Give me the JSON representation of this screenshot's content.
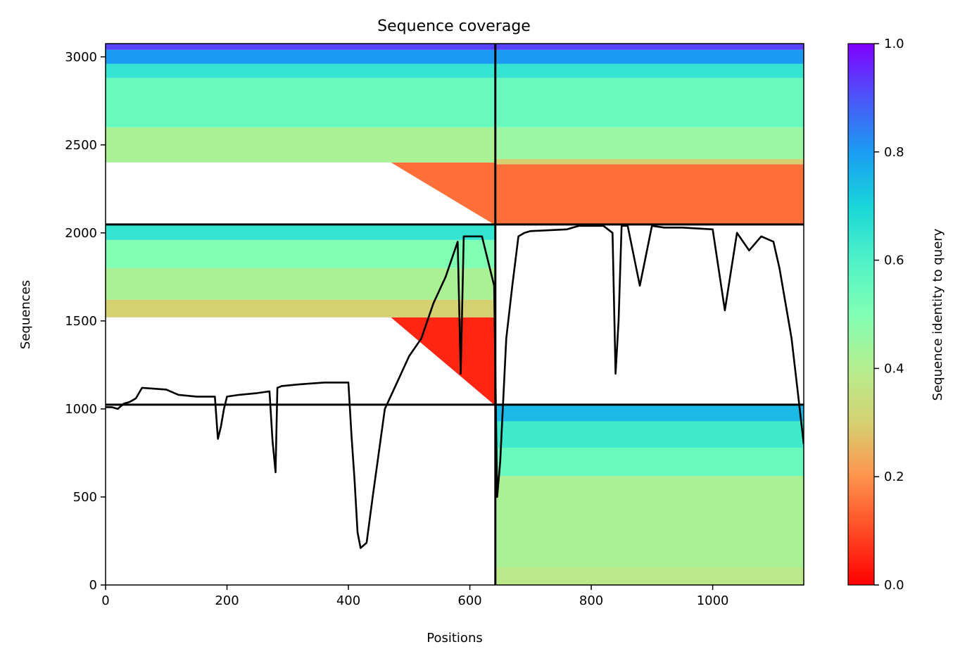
{
  "chart_data": {
    "type": "heatmap",
    "title": "Sequence coverage",
    "xlabel": "Positions",
    "ylabel": "Sequences",
    "xlim": [
      0,
      1150
    ],
    "ylim": [
      0,
      3075
    ],
    "xticks": [
      0,
      200,
      400,
      600,
      800,
      1000
    ],
    "yticks": [
      0,
      500,
      1000,
      1500,
      2000,
      2500,
      3000
    ],
    "colorbar": {
      "label": "Sequence identity to query",
      "range": [
        0.0,
        1.0
      ],
      "ticks": [
        "0.0",
        "0.2",
        "0.4",
        "0.6",
        "0.8",
        "1.0"
      ],
      "colormap": "rainbow"
    },
    "separators": {
      "x": [
        642
      ],
      "y": [
        1024,
        2048
      ]
    },
    "blocks": [
      {
        "x": [
          0,
          642
        ],
        "y": [
          0,
          1024
        ],
        "fill": "empty"
      },
      {
        "x": [
          642,
          1150
        ],
        "y": [
          0,
          1024
        ],
        "identity_bands": [
          {
            "y": [
              0,
              100
            ],
            "identity": 0.38
          },
          {
            "y": [
              100,
              620
            ],
            "identity": 0.42
          },
          {
            "y": [
              620,
              780
            ],
            "identity": 0.55
          },
          {
            "y": [
              780,
              930
            ],
            "identity": 0.63
          },
          {
            "y": [
              930,
              1024
            ],
            "identity": 0.75
          }
        ]
      },
      {
        "x": [
          0,
          642
        ],
        "y": [
          1024,
          2048
        ],
        "identity_bands": [
          {
            "y": [
              1024,
              1520
            ],
            "identity": 0.05,
            "x_start": [
              640,
              470
            ]
          },
          {
            "y": [
              1520,
              1620
            ],
            "identity": 0.3
          },
          {
            "y": [
              1620,
              1800
            ],
            "identity": 0.42
          },
          {
            "y": [
              1800,
              1960
            ],
            "identity": 0.5
          },
          {
            "y": [
              1960,
              2048
            ],
            "identity": 0.65
          }
        ]
      },
      {
        "x": [
          642,
          1150
        ],
        "y": [
          2048,
          3075
        ],
        "identity_bands": [
          {
            "y": [
              2048,
              2390
            ],
            "identity": 0.15
          },
          {
            "y": [
              2390,
              2420
            ],
            "identity": 0.3
          },
          {
            "y": [
              2420,
              2600
            ],
            "identity": 0.45
          },
          {
            "y": [
              2600,
              2880
            ],
            "identity": 0.55
          },
          {
            "y": [
              2880,
              2960
            ],
            "identity": 0.65
          },
          {
            "y": [
              2960,
              3040
            ],
            "identity": 0.8
          },
          {
            "y": [
              3040,
              3075
            ],
            "identity": 0.92
          }
        ]
      },
      {
        "x": [
          0,
          642
        ],
        "y": [
          2048,
          3075
        ],
        "identity_bands": [
          {
            "y": [
              2048,
              2400
            ],
            "identity": 0.15,
            "x_start": [
              640,
              470
            ]
          },
          {
            "y": [
              2400,
              2600
            ],
            "identity": 0.42
          },
          {
            "y": [
              2600,
              2880
            ],
            "identity": 0.55
          },
          {
            "y": [
              2880,
              2960
            ],
            "identity": 0.65
          },
          {
            "y": [
              2960,
              3040
            ],
            "identity": 0.8
          },
          {
            "y": [
              3040,
              3075
            ],
            "identity": 0.92
          }
        ]
      }
    ],
    "coverage_line": {
      "name": "coverage",
      "x": [
        0,
        10,
        20,
        30,
        40,
        50,
        60,
        100,
        120,
        150,
        180,
        185,
        190,
        195,
        200,
        220,
        250,
        270,
        275,
        280,
        283,
        290,
        320,
        360,
        400,
        405,
        410,
        415,
        420,
        430,
        440,
        460,
        480,
        500,
        520,
        540,
        560,
        580,
        585,
        590,
        600,
        620,
        640,
        645,
        650,
        660,
        670,
        680,
        690,
        700,
        760,
        780,
        800,
        820,
        835,
        840,
        845,
        850,
        860,
        880,
        900,
        920,
        950,
        1000,
        1020,
        1040,
        1060,
        1080,
        1100,
        1110,
        1120,
        1130,
        1140,
        1150
      ],
      "y": [
        1010,
        1010,
        1000,
        1030,
        1040,
        1060,
        1120,
        1110,
        1080,
        1070,
        1070,
        830,
        900,
        1000,
        1070,
        1080,
        1090,
        1100,
        820,
        640,
        1120,
        1130,
        1140,
        1150,
        1150,
        850,
        600,
        300,
        210,
        240,
        500,
        1000,
        1150,
        1300,
        1400,
        1600,
        1750,
        1950,
        1200,
        1980,
        1980,
        1980,
        1700,
        500,
        700,
        1400,
        1700,
        1980,
        2000,
        2010,
        2020,
        2040,
        2040,
        2040,
        2000,
        1200,
        1500,
        2040,
        2040,
        1700,
        2040,
        2030,
        2030,
        2020,
        1560,
        2000,
        1900,
        1980,
        1950,
        1800,
        1600,
        1400,
        1100,
        800
      ]
    }
  }
}
